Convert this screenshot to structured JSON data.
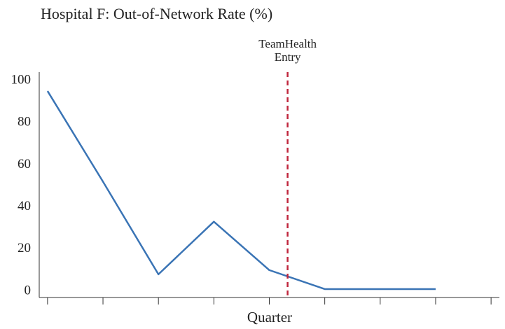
{
  "chart_data": {
    "type": "line",
    "title": "Hospital F: Out-of-Network Rate (%)",
    "x_label": "Quarter",
    "x": [
      1,
      2,
      3,
      4,
      5,
      6,
      7,
      8
    ],
    "series": [
      {
        "name": "Out-of-Network Rate",
        "color": "#3a74b5",
        "values": [
          95,
          52,
          8,
          33,
          10,
          1,
          1,
          1
        ]
      }
    ],
    "xlim": [
      0.85,
      9.15
    ],
    "xticks": [
      1,
      2,
      3,
      4,
      5,
      6,
      7,
      8,
      9
    ],
    "ylim": [
      -3,
      104
    ],
    "yticks": [
      0,
      20,
      40,
      60,
      80,
      100
    ],
    "legend": false,
    "grid": false,
    "annotation": {
      "x": 5.33,
      "color": "#c0263d",
      "text": [
        "TeamHealth",
        "Entry"
      ]
    }
  }
}
